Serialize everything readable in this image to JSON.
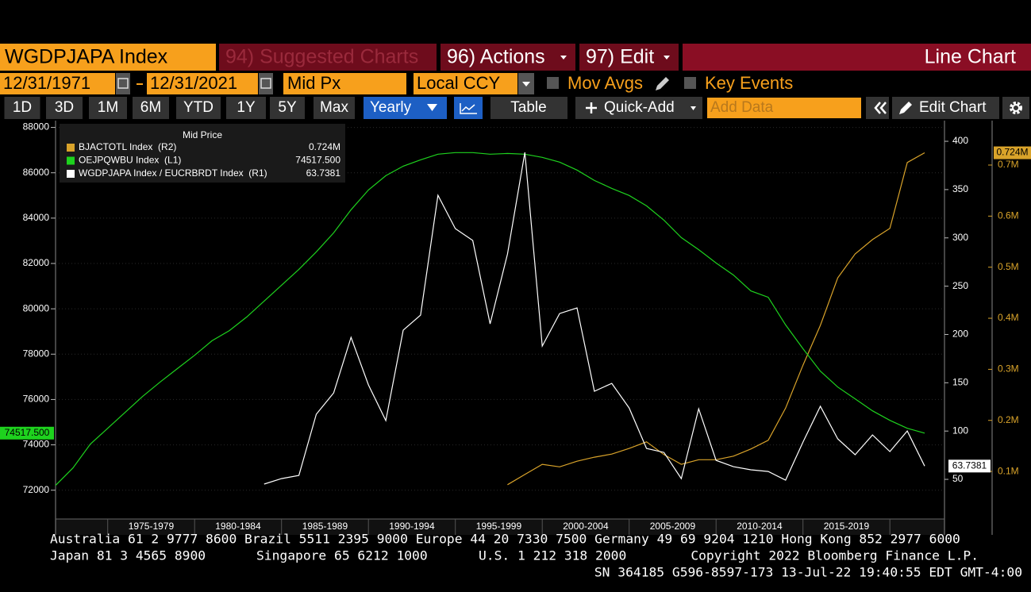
{
  "toolbar": {
    "security": "WGDPJAPA Index",
    "suggested": "94) Suggested Charts",
    "actions": "96) Actions",
    "edit": "97) Edit",
    "chart_type": "Line Chart"
  },
  "settings": {
    "start_date": "12/31/1971",
    "end_date": "12/31/2021",
    "field": "Mid Px",
    "currency": "Local CCY",
    "mov_avgs": "Mov Avgs",
    "key_events": "Key Events"
  },
  "periods": [
    "1D",
    "3D",
    "1M",
    "6M",
    "YTD",
    "1Y",
    "5Y",
    "Max"
  ],
  "frequency": "Yearly",
  "table": "Table",
  "quick_add": "Quick-Add",
  "add_data": "Add Data",
  "edit_chart": "Edit Chart",
  "chart_data": {
    "type": "line",
    "legend_title": "Mid Price",
    "x": [
      1971,
      1972,
      1973,
      1974,
      1975,
      1976,
      1977,
      1978,
      1979,
      1980,
      1981,
      1982,
      1983,
      1984,
      1985,
      1986,
      1987,
      1988,
      1989,
      1990,
      1991,
      1992,
      1993,
      1994,
      1995,
      1996,
      1997,
      1998,
      1999,
      2000,
      2001,
      2002,
      2003,
      2004,
      2005,
      2006,
      2007,
      2008,
      2009,
      2010,
      2011,
      2012,
      2013,
      2014,
      2015,
      2016,
      2017,
      2018,
      2019,
      2020,
      2021
    ],
    "xlim": [
      1971,
      2021
    ],
    "xticks": [
      {
        "value": 1976.5,
        "label": "1975-1979"
      },
      {
        "value": 1981.5,
        "label": "1980-1984"
      },
      {
        "value": 1986.5,
        "label": "1985-1989"
      },
      {
        "value": 1991.5,
        "label": "1990-1994"
      },
      {
        "value": 1996.5,
        "label": "1995-1999"
      },
      {
        "value": 2001.5,
        "label": "2000-2004"
      },
      {
        "value": 2006.5,
        "label": "2005-2009"
      },
      {
        "value": 2011.5,
        "label": "2010-2014"
      },
      {
        "value": 2016.5,
        "label": "2015-2019"
      }
    ],
    "ylim": [
      70800,
      88300
    ],
    "yticks": [
      72000,
      74000,
      76000,
      78000,
      80000,
      82000,
      84000,
      86000,
      88000
    ],
    "y2lim": [
      10.6,
      421.4
    ],
    "y2ticks": [
      50,
      100,
      150,
      200,
      250,
      300,
      350,
      400
    ],
    "y3lim": [
      0.01,
      0.787
    ],
    "y3ticks": [
      {
        "value": 0.1,
        "label": "0.1M"
      },
      {
        "value": 0.2,
        "label": "0.2M"
      },
      {
        "value": 0.3,
        "label": "0.3M"
      },
      {
        "value": 0.4,
        "label": "0.4M"
      },
      {
        "value": 0.5,
        "label": "0.5M"
      },
      {
        "value": 0.6,
        "label": "0.6M"
      },
      {
        "value": 0.7,
        "label": "0.7M"
      }
    ],
    "grid": true,
    "series": [
      {
        "name": "BJACTOTL Index  (R2)",
        "color": "#d9a32a",
        "axis": "y3",
        "value_label": "0.724M",
        "values": [
          null,
          null,
          null,
          null,
          null,
          null,
          null,
          null,
          null,
          null,
          null,
          null,
          null,
          null,
          null,
          null,
          null,
          null,
          null,
          null,
          null,
          null,
          null,
          null,
          null,
          null,
          0.074,
          0.094,
          0.114,
          0.109,
          0.12,
          0.128,
          0.134,
          0.145,
          0.158,
          0.133,
          0.114,
          0.123,
          0.123,
          0.13,
          0.144,
          0.161,
          0.224,
          0.308,
          0.386,
          0.479,
          0.526,
          0.554,
          0.576,
          0.705,
          0.724
        ]
      },
      {
        "name": "OEJPQWBU Index  (L1)",
        "color": "#1ed21e",
        "axis": "y",
        "value_label": "74517.500",
        "values": [
          72210,
          72980,
          74030,
          74730,
          75430,
          76130,
          76760,
          77360,
          77950,
          78590,
          79040,
          79640,
          80340,
          81040,
          81740,
          82510,
          83350,
          84370,
          85240,
          85870,
          86290,
          86570,
          86820,
          86890,
          86890,
          86820,
          86850,
          86820,
          86680,
          86470,
          86120,
          85660,
          85310,
          85000,
          84540,
          83910,
          83140,
          82610,
          82020,
          81490,
          80790,
          80510,
          79290,
          78240,
          77250,
          76550,
          76030,
          75500,
          75080,
          74730,
          74517.5
        ]
      },
      {
        "name": "WGDPJAPA Index / EUCRBRDT Index  (R1)",
        "color": "#ffffff",
        "axis": "y2",
        "value_label": "63.7381",
        "values": [
          null,
          null,
          null,
          null,
          null,
          null,
          null,
          null,
          null,
          null,
          null,
          null,
          45.1,
          50.8,
          54.1,
          117.4,
          139.5,
          197.0,
          147.8,
          110.8,
          204.4,
          220.0,
          344.1,
          309.6,
          297.3,
          211.0,
          283.3,
          388.5,
          188.0,
          221.7,
          227.5,
          141.2,
          149.4,
          123.9,
          82.0,
          77.9,
          50.8,
          123.1,
          69.7,
          63.1,
          59.9,
          58.2,
          49.2,
          88.6,
          125.6,
          91.9,
          75.5,
          96.0,
          78.8,
          100.1,
          63.7381
        ]
      }
    ]
  },
  "footer": {
    "line1": "Australia 61 2 9777 8600 Brazil 5511 2395 9000 Europe 44 20 7330 7500 Germany 49 69 9204 1210 Hong Kong 852 2977 6000",
    "japan": "Japan 81 3 4565 8900",
    "singapore": "Singapore 65 6212 1000",
    "us": "U.S. 1 212 318 2000",
    "copyright": "Copyright 2022 Bloomberg Finance L.P.",
    "sn": "SN 364185 G596-8597-173 13-Jul-22 19:40:55 EDT  GMT-4:00"
  }
}
